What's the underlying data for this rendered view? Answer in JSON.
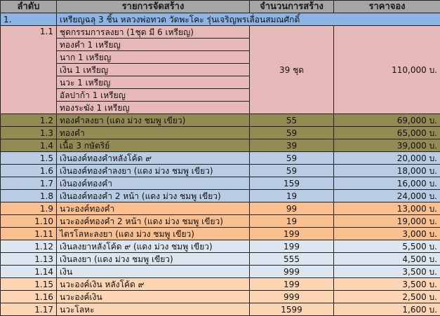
{
  "colors": {
    "header": "#a5a5a5",
    "section": "#8db4e2",
    "pink": "#e6b8b7",
    "olive": "#948a54",
    "blue": "#b8cce4",
    "orange": "#fabf8f",
    "lightblue": "#dce6f1",
    "lightorange": "#fcd5b4"
  },
  "headers": [
    "ลำดับ",
    "รายการจัดสร้าง",
    "จำนวนการสร้าง",
    "ราคาจอง"
  ],
  "section": {
    "no": "1.",
    "title": "เหรียญฉลุ 3 ชิ้น หลวงพ่อทวด วัดพะโคะ รุ่นเจริญพรเลื่อนสมณศักดิ์"
  },
  "set": {
    "no": "1.1",
    "items": [
      "ชุดกรรมการลงยา (1ชุด มี 6 เหรียญ)",
      "ทองคำ 1 เหรียญ",
      "นาก 1 เหรียญ",
      "เงิน 1 เหรียญ",
      "นวะ 1 เหรียญ",
      "อัลปาก้า 1 เหรียญ",
      "ทองระฆัง 1 เหรียญ"
    ],
    "qty": "39 ชุด",
    "price": "110,000 บ."
  },
  "rows": [
    {
      "no": "1.2",
      "name": "ทองคำลงยา (แดง ม่วง ชมพู เขียว)",
      "qty": "55",
      "price": "69,000 บ.",
      "color": "olive"
    },
    {
      "no": "1.3",
      "name": "ทองคำ",
      "qty": "59",
      "price": "65,000 บ.",
      "color": "olive"
    },
    {
      "no": "1.4",
      "name": "เนื้อ 3 กษัตริย์",
      "qty": "39",
      "price": "39,000 บ.",
      "color": "olive"
    },
    {
      "no": "1.5",
      "name": "เงินองค์ทองคำหลังโค้ด ๙",
      "qty": "59",
      "price": "20,000 บ.",
      "color": "blue"
    },
    {
      "no": "1.6",
      "name": "เงินองค์ทองคำลงยา (แดง ม่วง ชมพู เขียว)",
      "qty": "59",
      "price": "18,000 บ.",
      "color": "blue"
    },
    {
      "no": "1.7",
      "name": "เงินองค์ทองคำ",
      "qty": "159",
      "price": "16,000 บ.",
      "color": "blue"
    },
    {
      "no": "1.8",
      "name": "เงินองค์ทองคำ 2 หน้า (แดง ม่วง ชมพู เขียว)",
      "qty": "19",
      "price": "24,000 บ.",
      "color": "blue"
    },
    {
      "no": "1.9",
      "name": "นวะองค์ทองคำ",
      "qty": "99",
      "price": "13,000 บ.",
      "color": "orange"
    },
    {
      "no": "1.10",
      "name": "นวะองค์ทองคำ 2 หน้า (แดง ม่วง ชมพู เขียว)",
      "qty": "19",
      "price": "19,000 บ.",
      "color": "orange"
    },
    {
      "no": "1.11",
      "name": "ไตรโลหะลงยา (แดง ม่วง ชมพู เขียว)",
      "qty": "199",
      "price": "3,000 บ.",
      "color": "orange"
    },
    {
      "no": "1.12",
      "name": "เงินลงยาหลังโค้ด ๙ (แดง ม่วง ชมพู เขียว)",
      "qty": "199",
      "price": "5,500 บ.",
      "color": "lightblue"
    },
    {
      "no": "1.13",
      "name": "เงินลงยา (แดง ม่วง ชมพู เขียว)",
      "qty": "555",
      "price": "4,500 บ.",
      "color": "lightblue"
    },
    {
      "no": "1.14",
      "name": "เงิน",
      "qty": "999",
      "price": "3,500 บ.",
      "color": "lightblue"
    },
    {
      "no": "1.15",
      "name": "นวะองค์เงิน หลังโค้ด ๙",
      "qty": "199",
      "price": "3,500 บ.",
      "color": "lightorange"
    },
    {
      "no": "1.16",
      "name": "นวะองค์เงิน",
      "qty": "999",
      "price": "2,500 บ.",
      "color": "lightorange"
    },
    {
      "no": "1.17",
      "name": "นวะโลหะ",
      "qty": "1599",
      "price": "1,600 บ.",
      "color": "lightorange"
    }
  ]
}
